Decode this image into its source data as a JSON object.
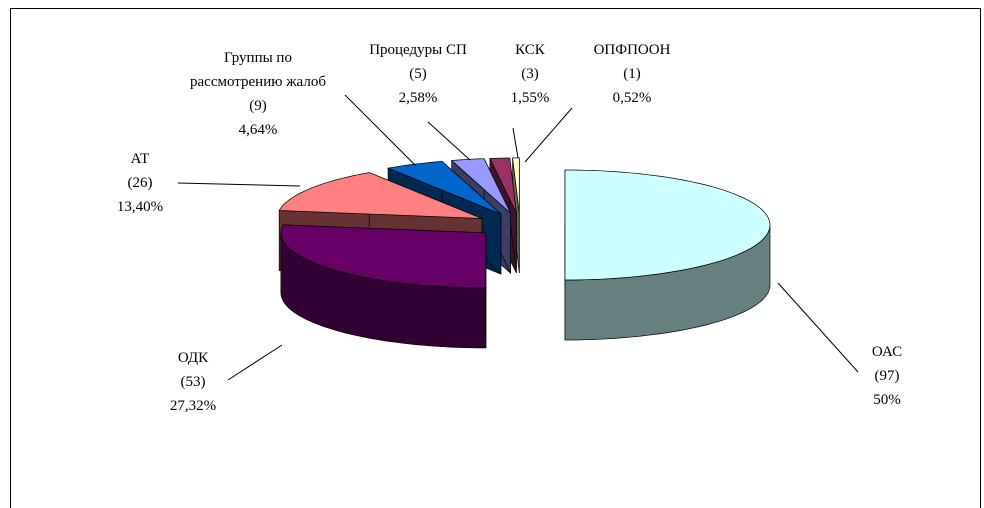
{
  "chart_data": {
    "type": "pie",
    "categories": [
      "ОАС",
      "ОДК",
      "АТ",
      "Группы по рассмотрению жалоб",
      "Процедуры СП",
      "КСК",
      "ОПФПООН"
    ],
    "values": [
      97,
      53,
      26,
      9,
      5,
      3,
      1
    ],
    "value_labels": [
      "(97)",
      "(53)",
      "(26)",
      "(9)",
      "(5)",
      "(3)",
      "(1)"
    ],
    "percent_labels": [
      "50%",
      "27,32%",
      "13,40%",
      "4,64%",
      "2,58%",
      "1,55%",
      "0,52%"
    ],
    "colors": [
      "#ccffff",
      "#660066",
      "#ff8080",
      "#0066cc",
      "#9999ff",
      "#993366",
      "#ffffcc"
    ]
  }
}
